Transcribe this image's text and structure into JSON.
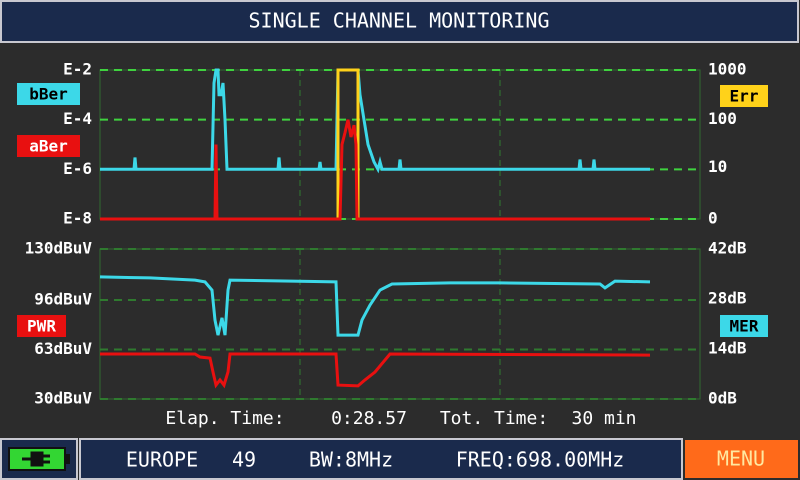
{
  "header": {
    "title": "SINGLE CHANNEL MONITORING"
  },
  "chart_data": [
    {
      "type": "line",
      "yscale": "log",
      "ylim": [
        1e-08,
        0.01
      ],
      "yticks": [
        {
          "value": 1e-08,
          "label": "E-8"
        },
        {
          "value": 1e-06,
          "label": "E-6"
        },
        {
          "value": 0.0001,
          "label": "E-4"
        },
        {
          "value": 0.01,
          "label": "E-2"
        }
      ],
      "y2scale": "log1p",
      "y2lim": [
        0,
        1000
      ],
      "y2ticks": [
        0,
        10,
        100,
        1000
      ],
      "xlim": [
        0,
        30
      ],
      "xgrid": [
        10,
        20
      ],
      "grid_color": "#3fd23f",
      "series": [
        {
          "name": "bBer",
          "color": "#3cd8e8",
          "x": [
            0,
            1.7,
            1.75,
            1.8,
            5.6,
            5.7,
            5.8,
            5.9,
            5.95,
            6.05,
            6.15,
            6.25,
            6.35,
            8.9,
            8.95,
            9,
            10.95,
            11,
            11.05,
            11.8,
            11.9,
            12.9,
            13,
            13.2,
            13.4,
            13.7,
            13.9,
            14,
            14.1,
            14.95,
            15,
            15.05,
            23.95,
            24,
            24.05,
            24.65,
            24.7,
            24.75,
            27.5
          ],
          "values": [
            1e-06,
            1e-06,
            3e-06,
            1e-06,
            1e-06,
            0.003,
            0.01,
            0.01,
            0.001,
            0.001,
            0.003,
            0.0001,
            1e-06,
            1e-06,
            3e-06,
            1e-06,
            1e-06,
            2e-06,
            1e-06,
            1e-06,
            0.01,
            0.01,
            0.001,
            0.0001,
            1e-05,
            2e-06,
            1e-06,
            2e-06,
            1e-06,
            1e-06,
            2.5e-06,
            1e-06,
            1e-06,
            2.5e-06,
            1e-06,
            1e-06,
            2.5e-06,
            1e-06,
            1e-06
          ]
        },
        {
          "name": "Err",
          "color": "#ffd21a",
          "axis": "y2",
          "x": [
            0,
            11.9,
            11.9,
            12.9,
            12.9,
            27.5
          ],
          "values": [
            0,
            0,
            1000,
            1000,
            0,
            0
          ]
        },
        {
          "name": "aBer",
          "color": "#e81010",
          "x": [
            0,
            5.75,
            5.8,
            5.85,
            12,
            12.1,
            12.25,
            12.4,
            12.55,
            12.7,
            12.8,
            12.85,
            27.5
          ],
          "values": [
            1e-08,
            1e-08,
            1e-05,
            1e-08,
            1e-08,
            1e-05,
            3e-05,
            0.0001,
            2e-05,
            6e-05,
            1e-05,
            1e-08,
            1e-08
          ]
        }
      ]
    },
    {
      "type": "line",
      "ylim": [
        30,
        130
      ],
      "yticks": [
        {
          "value": 30,
          "label": "30dBuV"
        },
        {
          "value": 63,
          "label": "63dBuV"
        },
        {
          "value": 96,
          "label": "96dBuV"
        },
        {
          "value": 130,
          "label": "130dBuV"
        }
      ],
      "y2lim": [
        0,
        42
      ],
      "y2ticks": [
        {
          "value": 0,
          "label": "0dB"
        },
        {
          "value": 14,
          "label": "14dB"
        },
        {
          "value": 28,
          "label": "28dB"
        },
        {
          "value": 42,
          "label": "42dB"
        }
      ],
      "xlim": [
        0,
        30
      ],
      "xgrid": [
        10,
        20
      ],
      "grid_color": "#2f7a2f",
      "series": [
        {
          "name": "MER",
          "color": "#3cd8e8",
          "axis": "y2",
          "x": [
            0,
            2.5,
            4.75,
            5.25,
            5.6,
            5.75,
            5.9,
            6.1,
            6.25,
            6.4,
            6.5,
            11.8,
            11.9,
            12.9,
            13.1,
            13.5,
            14,
            14.6,
            17.5,
            20,
            25,
            25.25,
            25.75,
            27.5
          ],
          "values": [
            34.2,
            33.9,
            33.3,
            32.8,
            30.5,
            22.1,
            17.9,
            22.7,
            17.9,
            30.5,
            33.3,
            32.8,
            17.9,
            17.9,
            22.1,
            26.3,
            30.5,
            32.2,
            32.5,
            32.5,
            32.2,
            31.1,
            33.0,
            32.8
          ]
        },
        {
          "name": "PWR",
          "color": "#e81010",
          "x": [
            0,
            4.75,
            5,
            5.5,
            5.65,
            5.8,
            6,
            6.2,
            6.4,
            6.5,
            11.8,
            11.9,
            12.9,
            13.25,
            13.75,
            14.25,
            14.5,
            27.5
          ],
          "values": [
            60,
            60,
            58,
            57.3,
            48,
            39.3,
            42.7,
            39.3,
            48,
            60,
            60,
            39.3,
            38.7,
            42.7,
            48,
            56,
            60,
            59.3
          ]
        }
      ]
    }
  ],
  "time_info": {
    "elapsed_label": "Elap. Time:",
    "elapsed": "0:28.57",
    "total_label": "Tot. Time:",
    "total": "30 min"
  },
  "status_bar": {
    "standard": "EUROPE",
    "channel": "49",
    "bandwidth": "BW:8MHz",
    "frequency": "FREQ:698.00MHz",
    "menu": "MENU"
  }
}
